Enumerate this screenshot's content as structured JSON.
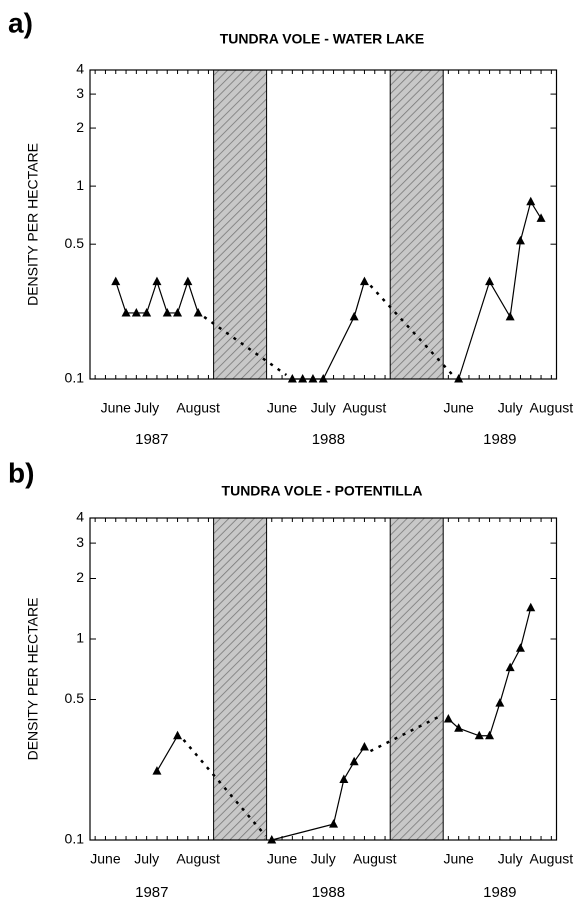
{
  "chart_data": [
    {
      "type": "line",
      "panel_label": "a)",
      "title": "TUNDRA VOLE  -  WATER LAKE",
      "ylabel": "DENSITY PER HECTARE",
      "log_y": true,
      "ylim": [
        0.1,
        4
      ],
      "yticks": [
        0.1,
        0.5,
        1,
        2,
        3,
        4
      ],
      "color": "#000000",
      "groups": [
        {
          "name": "1987",
          "categories": [
            null,
            null,
            "June",
            null,
            null,
            "July",
            null,
            null,
            null,
            null,
            "August",
            null
          ],
          "values": [
            null,
            null,
            0.32,
            0.22,
            0.22,
            0.22,
            0.32,
            0.22,
            0.22,
            0.32,
            0.22,
            null
          ]
        },
        {
          "name": "1988",
          "categories": [
            null,
            "June",
            null,
            null,
            null,
            "July",
            null,
            null,
            null,
            "August",
            null,
            null
          ],
          "values": [
            null,
            null,
            0.1,
            0.1,
            0.1,
            0.1,
            null,
            null,
            0.21,
            0.32,
            null,
            null
          ]
        },
        {
          "name": "1989",
          "categories": [
            null,
            "June",
            null,
            null,
            null,
            null,
            "July",
            null,
            null,
            null,
            "August"
          ],
          "values": [
            null,
            0.1,
            null,
            null,
            0.32,
            null,
            0.21,
            0.52,
            0.83,
            0.68,
            null
          ]
        }
      ]
    },
    {
      "type": "line",
      "panel_label": "b)",
      "title": "TUNDRA VOLE  -  POTENTILLA",
      "ylabel": "DENSITY PER HECTARE",
      "log_y": true,
      "ylim": [
        0.1,
        4
      ],
      "yticks": [
        0.1,
        0.5,
        1,
        2,
        3,
        4
      ],
      "color": "#000000",
      "groups": [
        {
          "name": "1987",
          "categories": [
            null,
            "June",
            null,
            null,
            null,
            "July",
            null,
            null,
            null,
            null,
            "August",
            null
          ],
          "values": [
            null,
            null,
            null,
            null,
            null,
            null,
            0.22,
            null,
            0.33,
            null,
            null,
            null
          ]
        },
        {
          "name": "1988",
          "categories": [
            null,
            "June",
            null,
            null,
            null,
            "July",
            null,
            null,
            null,
            null,
            "August",
            null
          ],
          "values": [
            0.1,
            null,
            null,
            null,
            null,
            null,
            0.12,
            0.2,
            0.245,
            0.29,
            null,
            null
          ]
        },
        {
          "name": "1989",
          "categories": [
            null,
            "June",
            null,
            null,
            null,
            null,
            "July",
            null,
            null,
            null,
            "August"
          ],
          "values": [
            0.4,
            0.36,
            null,
            0.33,
            0.33,
            0.48,
            0.72,
            0.9,
            1.43,
            null,
            null
          ]
        }
      ]
    }
  ]
}
